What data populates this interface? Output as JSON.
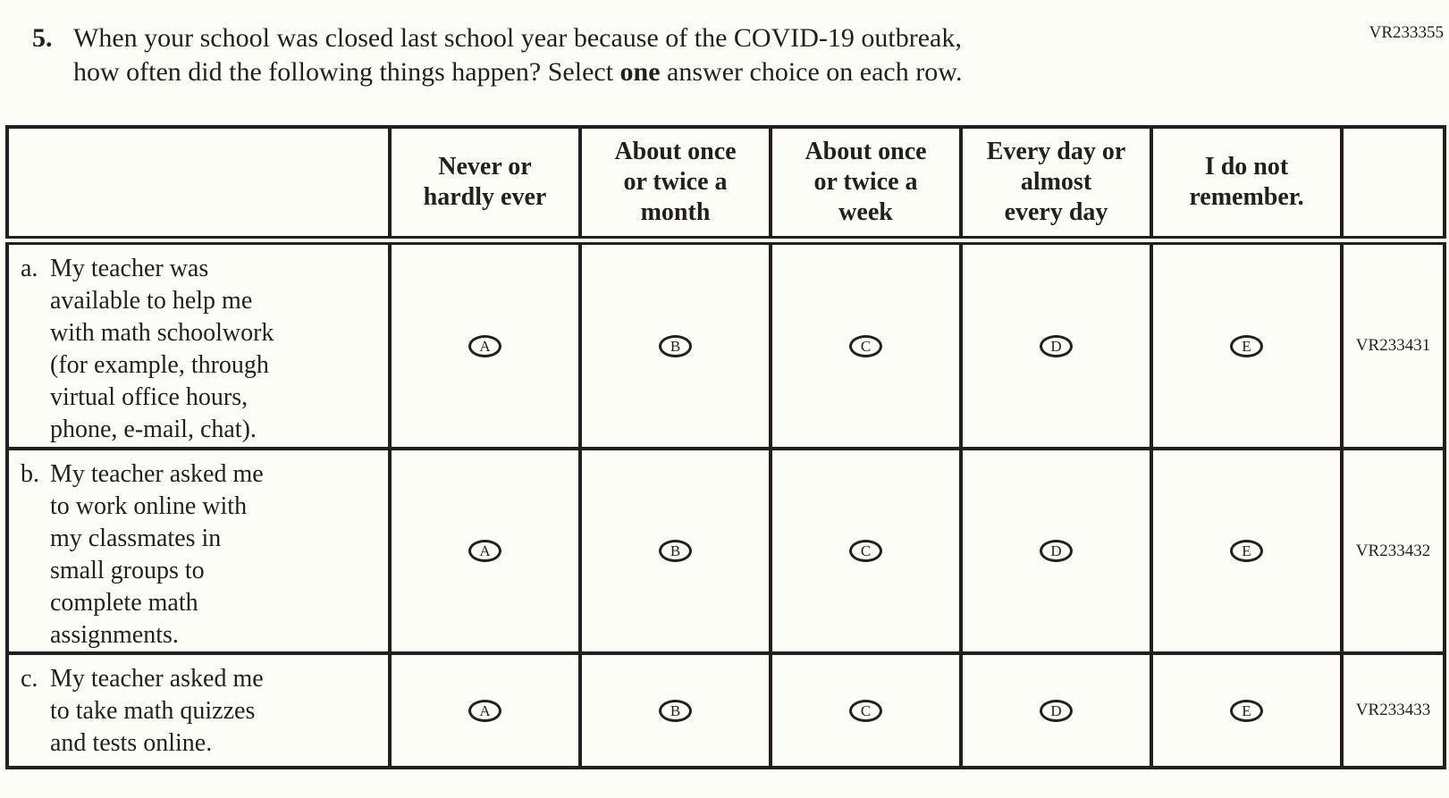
{
  "page": {
    "code_top_right": "VR233355",
    "background_color": "#fdfdf7",
    "ink_color": "#231f20"
  },
  "question": {
    "number": "5.",
    "line1": "When your school was closed last school year because of the COVID-19 outbreak,",
    "line2_before_bold": "how often did the following things happen? Select ",
    "bold_word": "one",
    "line2_after_bold": " answer choice on each row."
  },
  "table": {
    "columns": [
      {
        "lines": [
          "Never or",
          "hardly ever"
        ]
      },
      {
        "lines": [
          "About once",
          "or twice a",
          "month"
        ]
      },
      {
        "lines": [
          "About once",
          "or twice a",
          "week"
        ]
      },
      {
        "lines": [
          "Every day or",
          "almost",
          "every day"
        ]
      },
      {
        "lines": [
          "I do not",
          "remember."
        ]
      }
    ],
    "choices": [
      "A",
      "B",
      "C",
      "D",
      "E"
    ],
    "rows": [
      {
        "label": "a.",
        "lines": [
          "My teacher was",
          "available to help me",
          "with math schoolwork",
          "(for example, through",
          "virtual office hours,",
          "phone, e-mail, chat)."
        ],
        "code": "VR233431"
      },
      {
        "label": "b.",
        "lines": [
          "My teacher asked me",
          "to work online with",
          "my classmates in",
          "small groups to",
          "complete math",
          "assignments."
        ],
        "code": "VR233432"
      },
      {
        "label": "c.",
        "lines": [
          "My teacher asked me",
          "to take math quizzes",
          "and tests online."
        ],
        "code": "VR233433"
      }
    ]
  }
}
